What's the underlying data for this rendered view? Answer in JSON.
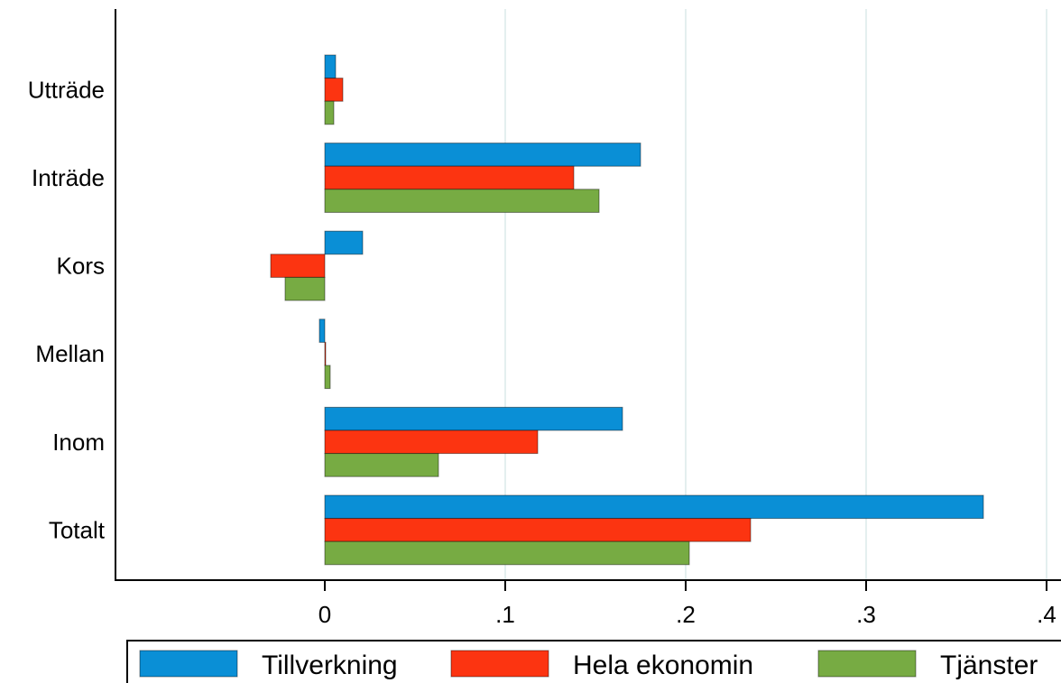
{
  "chart_data": {
    "type": "bar",
    "orientation": "horizontal",
    "categories": [
      "Utträde",
      "Inträde",
      "Kors",
      "Mellan",
      "Inom",
      "Totalt"
    ],
    "series": [
      {
        "name": "Tillverkning",
        "color": "#0a8fd6",
        "values": [
          0.006,
          0.175,
          0.021,
          -0.003,
          0.165,
          0.365
        ]
      },
      {
        "name": "Hela ekonomin",
        "color": "#fc3411",
        "values": [
          0.01,
          0.138,
          -0.03,
          0.0005,
          0.118,
          0.236
        ]
      },
      {
        "name": "Tjänster",
        "color": "#77ab43",
        "values": [
          0.005,
          0.152,
          -0.022,
          0.003,
          0.063,
          0.202
        ]
      }
    ],
    "x_ticks": [
      {
        "value": 0,
        "label": "0"
      },
      {
        "value": 0.1,
        "label": ".1"
      },
      {
        "value": 0.2,
        "label": ".2"
      },
      {
        "value": 0.3,
        "label": ".3"
      },
      {
        "value": 0.4,
        "label": ".4"
      }
    ],
    "xlim": [
      -0.116,
      0.41
    ],
    "grid": true,
    "legend_position": "bottom"
  }
}
